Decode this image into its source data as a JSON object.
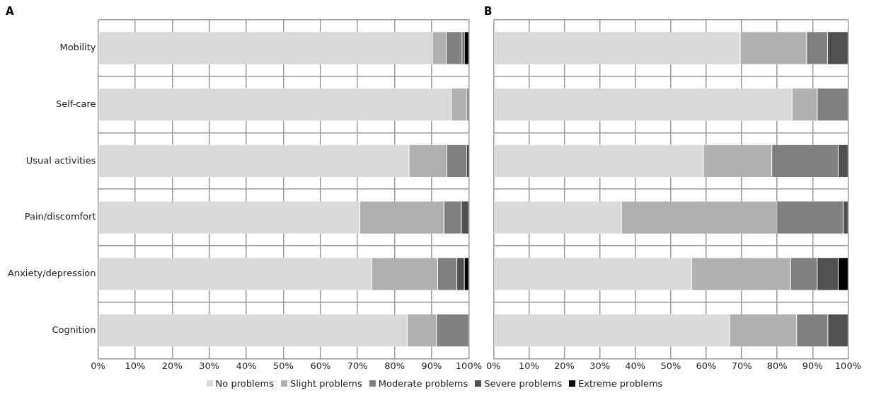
{
  "chart_data": [
    {
      "type": "bar",
      "title": "A",
      "orientation": "horizontal",
      "stacked": true,
      "grid": true,
      "legend": "bottom",
      "categories": [
        "Mobility",
        "Self-care",
        "Usual activities",
        "Pain/discomfort",
        "Anxiety/depression",
        "Cognition"
      ],
      "xlim": [
        0,
        100
      ],
      "xticks": [
        {
          "value": 0,
          "label": "0%"
        },
        {
          "value": 10,
          "label": "10%"
        },
        {
          "value": 20,
          "label": "20%"
        },
        {
          "value": 30,
          "label": "30%"
        },
        {
          "value": 40,
          "label": "40%"
        },
        {
          "value": 50,
          "label": "50%"
        },
        {
          "value": 60,
          "label": "60%"
        },
        {
          "value": 70,
          "label": "70%"
        },
        {
          "value": 80,
          "label": "80%"
        },
        {
          "value": 90,
          "label": "90%"
        },
        {
          "value": 100,
          "label": "100%"
        }
      ],
      "series": [
        {
          "name": "No problems",
          "color": "#d9d9d9",
          "values": [
            90.2,
            95.3,
            83.9,
            70.6,
            73.8,
            83.4
          ]
        },
        {
          "name": "Slight problems",
          "color": "#b0b0b0",
          "values": [
            3.7,
            4.1,
            10.2,
            22.7,
            17.8,
            7.9
          ]
        },
        {
          "name": "Moderate problems",
          "color": "#808080",
          "values": [
            4.3,
            0.6,
            5.4,
            4.7,
            5.2,
            8.7
          ]
        },
        {
          "name": "Severe problems",
          "color": "#505050",
          "values": [
            0.6,
            0,
            0,
            2.0,
            2.0,
            0
          ]
        },
        {
          "name": "Extreme problems",
          "color": "#000000",
          "values": [
            1.2,
            0,
            0.5,
            0,
            1.2,
            0
          ]
        }
      ]
    },
    {
      "type": "bar",
      "title": "B",
      "orientation": "horizontal",
      "stacked": true,
      "grid": true,
      "tick_labels": "x",
      "categories": [
        null,
        null,
        null,
        null,
        null,
        null
      ],
      "xlim": [
        0,
        100
      ],
      "xticks": [
        {
          "value": 0,
          "label": "0%"
        },
        {
          "value": 10,
          "label": "10%"
        },
        {
          "value": 20,
          "label": "20%"
        },
        {
          "value": 30,
          "label": "30%"
        },
        {
          "value": 40,
          "label": "40%"
        },
        {
          "value": 50,
          "label": "50%"
        },
        {
          "value": 60,
          "label": "60%"
        },
        {
          "value": 70,
          "label": "70%"
        },
        {
          "value": 80,
          "label": "80%"
        },
        {
          "value": 90,
          "label": "90%"
        },
        {
          "value": 100,
          "label": "100%"
        }
      ],
      "series": [
        {
          "color": "#d9d9d9",
          "values": [
            69.6,
            84.2,
            59.2,
            36.1,
            55.9,
            66.6
          ]
        },
        {
          "color": "#b0b0b0",
          "values": [
            18.7,
            7.1,
            19.3,
            43.8,
            27.9,
            18.9
          ]
        },
        {
          "color": "#808080",
          "values": [
            5.9,
            8.7,
            18.7,
            18.7,
            7.5,
            8.8
          ]
        },
        {
          "color": "#505050",
          "values": [
            5.8,
            0,
            2.8,
            1.4,
            5.9,
            5.7
          ]
        },
        {
          "color": "#000000",
          "values": [
            0,
            0,
            0,
            0,
            2.8,
            0
          ]
        }
      ]
    }
  ]
}
